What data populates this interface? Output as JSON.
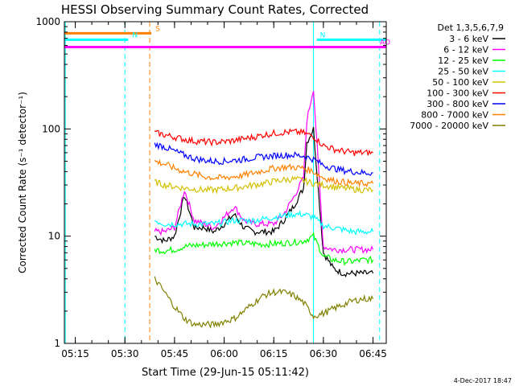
{
  "chart_data": {
    "type": "line",
    "title": "HESSI Observing Summary Count Rates, Corrected",
    "xlabel": "Start Time (29-Jun-15 05:11:42)",
    "ylabel": "Corrected Count Rate (s⁻¹ detector⁻¹)",
    "y_scale": "log",
    "ylim": [
      1,
      1000
    ],
    "xlim": [
      "05:11:42",
      "06:49:00"
    ],
    "x_ticks": [
      "05:15",
      "05:30",
      "05:45",
      "06:00",
      "06:15",
      "06:30",
      "06:45"
    ],
    "y_ticks": [
      "1",
      "10",
      "100",
      "1000"
    ],
    "timestamp": "4-Dec-2017 18:47",
    "legend": {
      "title": "Det 1,3,5,6,7,9",
      "placement": "right",
      "entries": [
        {
          "label": "3 - 6 keV",
          "color": "#000000"
        },
        {
          "label": "6 - 12 keV",
          "color": "#ff00ff"
        },
        {
          "label": "12 - 25 keV",
          "color": "#00ff00"
        },
        {
          "label": "25 - 50 keV",
          "color": "#00ffff"
        },
        {
          "label": "50 - 100 keV",
          "color": "#d4c000"
        },
        {
          "label": "100 - 300 keV",
          "color": "#ff0000"
        },
        {
          "label": "300 - 800 keV",
          "color": "#0000ff"
        },
        {
          "label": "800 - 7000 keV",
          "color": "#ff8000"
        },
        {
          "label": "7000 - 20000 keV",
          "color": "#808000"
        }
      ]
    },
    "flag_bars": [
      {
        "label": "S",
        "color": "#ff8000",
        "start": "05:11:42",
        "end": "05:38:00",
        "value": 780
      },
      {
        "label": "N",
        "color": "#00ffff",
        "start": "05:11:42",
        "end": "05:31:00",
        "value": 680
      },
      {
        "label": "N",
        "color": "#00ffff",
        "start": "06:28:00",
        "end": "06:49:00",
        "value": 680
      },
      {
        "label": "AO",
        "color": "#ff00ff",
        "start": "05:11:42",
        "end": "06:49:00",
        "value": 580
      }
    ],
    "vertical_markers": [
      {
        "time": "05:12:00",
        "color": "#00ffff",
        "style": "solid"
      },
      {
        "time": "05:30:00",
        "color": "#00ffff",
        "style": "dashed"
      },
      {
        "time": "05:37:30",
        "color": "#ff8000",
        "style": "dashed"
      },
      {
        "time": "06:27:00",
        "color": "#00ffff",
        "style": "solid"
      },
      {
        "time": "06:47:00",
        "color": "#00ffff",
        "style": "dashed"
      }
    ],
    "series": [
      {
        "name": "3 - 6 keV",
        "color": "#000000",
        "x": [
          "05:39",
          "05:42",
          "05:45",
          "05:48",
          "05:51",
          "05:54",
          "05:57",
          "06:00",
          "06:03",
          "06:06",
          "06:09",
          "06:12",
          "06:15",
          "06:18",
          "06:21",
          "06:24",
          "06:25",
          "06:27",
          "06:30",
          "06:33",
          "06:36",
          "06:39",
          "06:42",
          "06:45"
        ],
        "y": [
          10,
          9,
          10,
          24,
          12,
          12,
          11,
          13,
          16,
          12,
          11,
          11,
          11,
          14,
          19,
          28,
          75,
          100,
          7,
          5,
          4.5,
          4.5,
          4.5,
          4.5
        ]
      },
      {
        "name": "6 - 12 keV",
        "color": "#ff00ff",
        "x": [
          "05:39",
          "05:42",
          "05:45",
          "05:48",
          "05:51",
          "05:54",
          "05:57",
          "06:00",
          "06:03",
          "06:06",
          "06:09",
          "06:12",
          "06:15",
          "06:18",
          "06:21",
          "06:24",
          "06:25",
          "06:27",
          "06:30",
          "06:33",
          "06:36",
          "06:39",
          "06:42",
          "06:45"
        ],
        "y": [
          11,
          11,
          12,
          27,
          14,
          13,
          12,
          15,
          19,
          14,
          13,
          13,
          13,
          16,
          23,
          35,
          120,
          240,
          8,
          7.5,
          7.5,
          7.5,
          7.5,
          7.5
        ]
      },
      {
        "name": "12 - 25 keV",
        "color": "#00ff00",
        "x": [
          "05:39",
          "05:42",
          "05:45",
          "05:48",
          "05:51",
          "05:54",
          "05:57",
          "06:00",
          "06:03",
          "06:06",
          "06:09",
          "06:12",
          "06:15",
          "06:18",
          "06:21",
          "06:24",
          "06:27",
          "06:30",
          "06:33",
          "06:36",
          "06:39",
          "06:42",
          "06:45"
        ],
        "y": [
          7.5,
          7.3,
          7.5,
          8,
          8.2,
          8.3,
          8.5,
          8.6,
          8.7,
          8.6,
          8.5,
          8.4,
          8.5,
          8.6,
          8.8,
          9,
          10,
          6.5,
          6,
          5.8,
          5.8,
          6,
          6
        ]
      },
      {
        "name": "25 - 50 keV",
        "color": "#00ffff",
        "x": [
          "05:39",
          "05:42",
          "05:45",
          "05:48",
          "05:51",
          "05:54",
          "05:57",
          "06:00",
          "06:03",
          "06:06",
          "06:09",
          "06:12",
          "06:15",
          "06:18",
          "06:21",
          "06:24",
          "06:27",
          "06:30",
          "06:33",
          "06:36",
          "06:39",
          "06:42",
          "06:45"
        ],
        "y": [
          14,
          13,
          13,
          13,
          13,
          13,
          13,
          13.5,
          14,
          14,
          14,
          14.5,
          15,
          15.5,
          16,
          16,
          15,
          12.5,
          12,
          11.5,
          11,
          11,
          11
        ]
      },
      {
        "name": "50 - 100 keV",
        "color": "#d4c000",
        "x": [
          "05:39",
          "05:42",
          "05:45",
          "05:48",
          "05:51",
          "05:54",
          "05:57",
          "06:00",
          "06:03",
          "06:06",
          "06:09",
          "06:12",
          "06:15",
          "06:18",
          "06:21",
          "06:24",
          "06:27",
          "06:30",
          "06:33",
          "06:36",
          "06:39",
          "06:42",
          "06:45"
        ],
        "y": [
          32,
          30,
          29,
          28,
          27.5,
          27,
          27,
          27.5,
          28,
          29,
          30,
          31,
          32.5,
          33.5,
          34,
          33,
          31,
          30,
          29,
          28,
          27.5,
          27,
          27
        ]
      },
      {
        "name": "100 - 300 keV",
        "color": "#ff0000",
        "x": [
          "05:39",
          "05:42",
          "05:45",
          "05:48",
          "05:51",
          "05:54",
          "05:57",
          "06:00",
          "06:03",
          "06:06",
          "06:09",
          "06:12",
          "06:15",
          "06:18",
          "06:21",
          "06:24",
          "06:27",
          "06:30",
          "06:33",
          "06:36",
          "06:39",
          "06:42",
          "06:45"
        ],
        "y": [
          92,
          88,
          84,
          80,
          77,
          76,
          75,
          76,
          78,
          81,
          84,
          88,
          91,
          93,
          94,
          92,
          85,
          70,
          65,
          62,
          60,
          60,
          60
        ]
      },
      {
        "name": "300 - 800 keV",
        "color": "#0000ff",
        "x": [
          "05:39",
          "05:42",
          "05:45",
          "05:48",
          "05:51",
          "05:54",
          "05:57",
          "06:00",
          "06:03",
          "06:06",
          "06:09",
          "06:12",
          "06:15",
          "06:18",
          "06:21",
          "06:24",
          "06:27",
          "06:30",
          "06:33",
          "06:36",
          "06:39",
          "06:42",
          "06:45"
        ],
        "y": [
          72,
          68,
          62,
          57,
          53,
          51,
          50,
          50,
          51,
          52,
          54,
          55,
          56,
          57,
          57,
          56,
          52,
          46,
          43,
          41,
          40,
          39,
          39
        ]
      },
      {
        "name": "800 - 7000 keV",
        "color": "#ff8000",
        "x": [
          "05:39",
          "05:42",
          "05:45",
          "05:48",
          "05:51",
          "05:54",
          "05:57",
          "06:00",
          "06:03",
          "06:06",
          "06:09",
          "06:12",
          "06:15",
          "06:18",
          "06:21",
          "06:24",
          "06:27",
          "06:30",
          "06:33",
          "06:36",
          "06:39",
          "06:42",
          "06:45"
        ],
        "y": [
          50,
          47,
          43,
          40,
          38,
          36,
          35,
          35,
          36,
          37,
          39,
          41,
          43,
          44,
          44,
          43,
          40,
          35,
          33,
          32,
          31,
          31,
          31
        ]
      },
      {
        "name": "7000 - 20000 keV",
        "color": "#808000",
        "x": [
          "05:39",
          "05:42",
          "05:45",
          "05:48",
          "05:51",
          "05:54",
          "05:57",
          "06:00",
          "06:03",
          "06:06",
          "06:09",
          "06:12",
          "06:15",
          "06:18",
          "06:21",
          "06:24",
          "06:27",
          "06:30",
          "06:33",
          "06:36",
          "06:39",
          "06:42",
          "06:45"
        ],
        "y": [
          4,
          3,
          2.2,
          1.7,
          1.5,
          1.5,
          1.5,
          1.6,
          1.7,
          2,
          2.4,
          2.8,
          3,
          3,
          2.8,
          2.4,
          1.8,
          1.9,
          2.1,
          2.3,
          2.5,
          2.6,
          2.6
        ]
      }
    ]
  }
}
